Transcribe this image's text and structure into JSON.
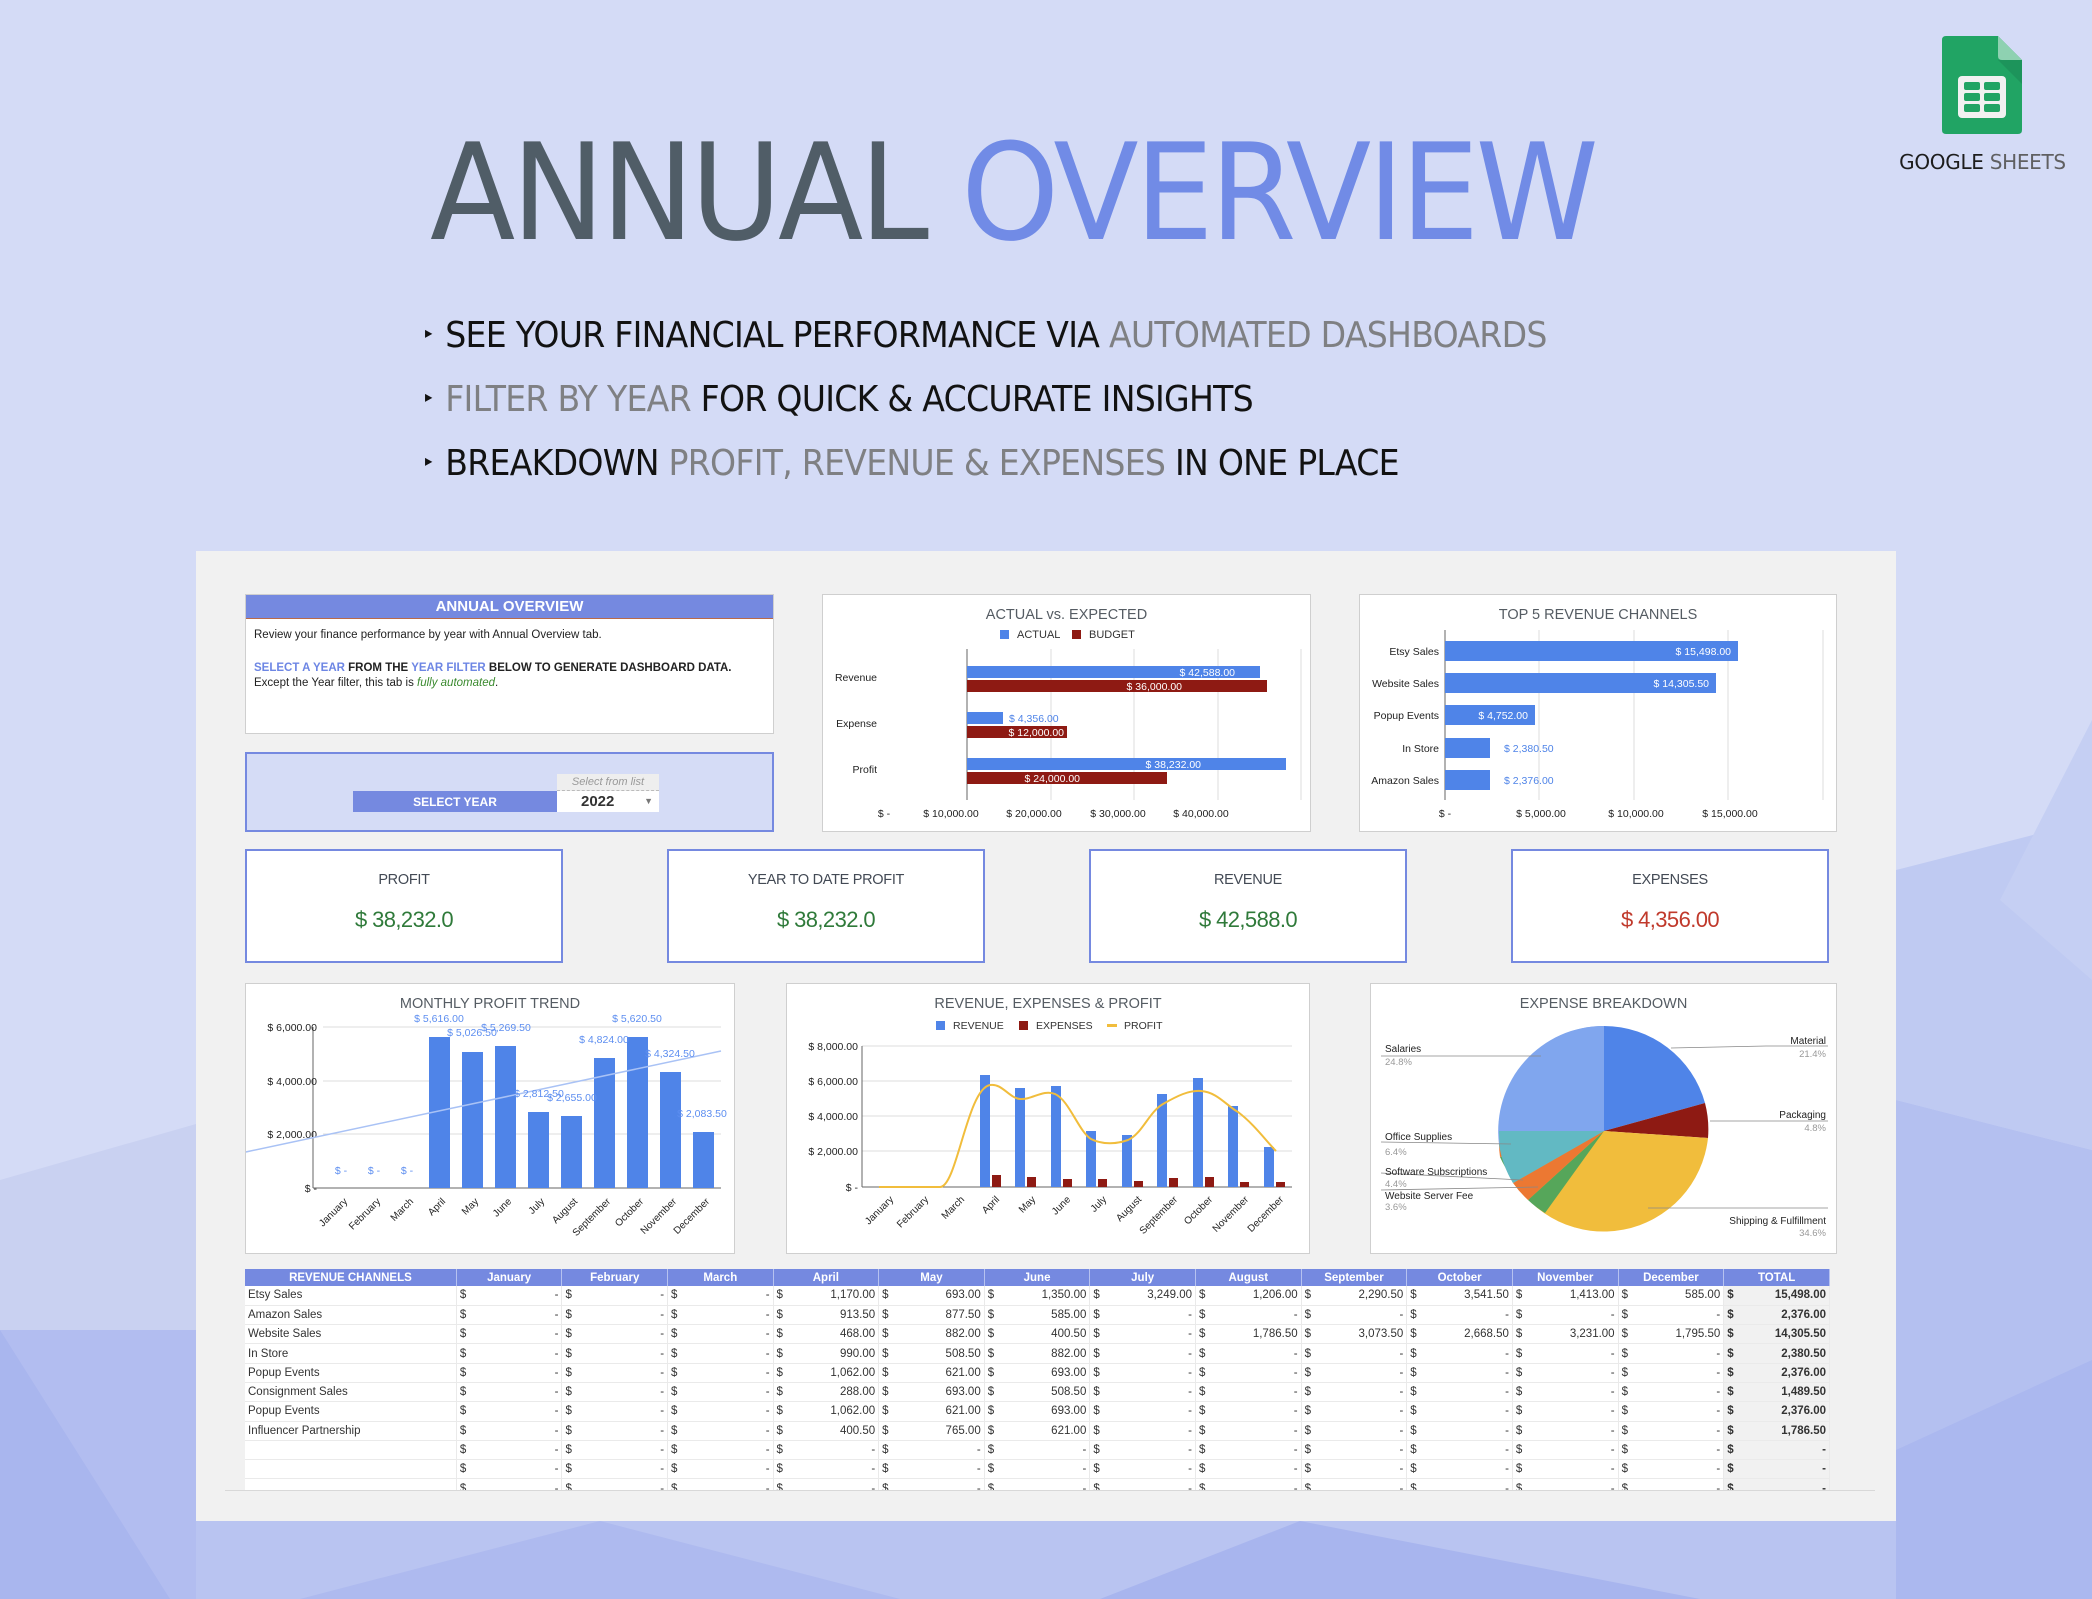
{
  "hero": {
    "title_dark": "ANNUAL",
    "title_accent": "OVERVIEW",
    "bullets": [
      {
        "parts": [
          {
            "text": "SEE YOUR FINANCIAL PERFORMANCE VIA ",
            "style": "dark"
          },
          {
            "text": "AUTOMATED DASHBOARDS",
            "style": "gray"
          }
        ]
      },
      {
        "parts": [
          {
            "text": "FILTER BY YEAR",
            "style": "gray"
          },
          {
            "text": " FOR QUICK & ACCURATE INSIGHTS",
            "style": "dark"
          }
        ]
      },
      {
        "parts": [
          {
            "text": "BREAKDOWN ",
            "style": "dark"
          },
          {
            "text": "PROFIT, REVENUE & EXPENSES",
            "style": "gray"
          },
          {
            "text": " IN ONE PLACE",
            "style": "dark"
          }
        ]
      }
    ],
    "bullet_marker": "▸"
  },
  "brand": {
    "icon": "google-sheets-icon",
    "label_bold": "GOOGLE",
    "label_light": "SHEETS"
  },
  "colors": {
    "accent": "#7589e0",
    "title_dark": "#505d67",
    "title_accent": "#718be6",
    "chart_blue": "#4f84e8",
    "chart_red": "#8e1a13",
    "chart_yellow": "#f1bd3c",
    "positive": "#2f7a3a",
    "negative": "#c0392b"
  },
  "info": {
    "header": "ANNUAL OVERVIEW",
    "line1": "Review your finance performance by year with Annual Overview tab.",
    "line2_a": "SELECT A YEAR",
    "line2_b": " FROM THE ",
    "line2_c": "YEAR FILTER",
    "line2_d": " BELOW TO GENERATE DASHBOARD DATA.",
    "line3_a": "Except the Year filter, this tab is ",
    "line3_b": "fully automated",
    "line3_c": "."
  },
  "year_filter": {
    "label": "SELECT YEAR",
    "hint": "Select from list",
    "value": "2022"
  },
  "kpis": [
    {
      "label": "PROFIT",
      "value": "$ 38,232.0",
      "tone": "green"
    },
    {
      "label": "YEAR TO DATE PROFIT",
      "value": "$ 38,232.0",
      "tone": "green"
    },
    {
      "label": "REVENUE",
      "value": "$ 42,588.0",
      "tone": "green"
    },
    {
      "label": "EXPENSES",
      "value": "$ 4,356.00",
      "tone": "red"
    }
  ],
  "chart_data": [
    {
      "type": "bar",
      "orientation": "horizontal",
      "title": "ACTUAL vs. EXPECTED",
      "categories": [
        "Revenue",
        "Expense",
        "Profit"
      ],
      "series": [
        {
          "name": "ACTUAL",
          "values": [
            42588,
            4356,
            38232
          ],
          "labels": [
            "$ 42,588.00",
            "$ 4,356.00",
            "$ 38,232.00"
          ]
        },
        {
          "name": "BUDGET",
          "values": [
            36000,
            12000,
            24000
          ],
          "labels": [
            "$ 36,000.00",
            "$ 12,000.00",
            "$ 24,000.00"
          ]
        }
      ],
      "xticks": [
        "$ -",
        "$ 10,000.00",
        "$ 20,000.00",
        "$ 30,000.00",
        "$ 40,000.00"
      ],
      "xlim": [
        0,
        50000
      ],
      "legend_position": "top",
      "grid": true
    },
    {
      "type": "bar",
      "orientation": "horizontal",
      "title": "TOP 5 REVENUE CHANNELS",
      "categories": [
        "Etsy Sales",
        "Website Sales",
        "Popup Events",
        "In Store",
        "Amazon Sales"
      ],
      "values": [
        15498,
        14305.5,
        4752,
        2380.5,
        2376
      ],
      "labels": [
        "$ 15,498.00",
        "$ 14,305.50",
        "$ 4,752.00",
        "$ 2,380.50",
        "$ 2,376.00"
      ],
      "xticks": [
        "$ -",
        "$ 5,000.00",
        "$ 10,000.00",
        "$ 15,000.00"
      ],
      "xlim": [
        0,
        20000
      ],
      "grid": true
    },
    {
      "type": "bar",
      "title": "MONTHLY PROFIT TREND",
      "categories": [
        "January",
        "February",
        "March",
        "April",
        "May",
        "June",
        "July",
        "August",
        "September",
        "October",
        "November",
        "December"
      ],
      "values": [
        0,
        0,
        0,
        5616,
        5026.5,
        5269.5,
        2812.5,
        2655,
        4824,
        5620.5,
        4324.5,
        2083.5
      ],
      "labels": [
        "$ -",
        "$ -",
        "$ -",
        "$ 5,616.00",
        "$ 5,026.50",
        "$ 5,269.50",
        "$ 2,812.50",
        "$ 2,655.00",
        "$ 4,824.00",
        "$ 5,620.50",
        "$ 4,324.50",
        "$ 2,083.50"
      ],
      "trendline": {
        "start": 1300,
        "end": 5050
      },
      "yticks": [
        "$ -",
        "$ 2,000.00",
        "$ 4,000.00",
        "$ 6,000.00"
      ],
      "ylim": [
        0,
        6000
      ],
      "grid": true
    },
    {
      "type": "bar",
      "title": "REVENUE, EXPENSES & PROFIT",
      "categories": [
        "January",
        "February",
        "March",
        "April",
        "May",
        "June",
        "July",
        "August",
        "September",
        "October",
        "November",
        "December"
      ],
      "series": [
        {
          "name": "REVENUE",
          "type": "bar",
          "values": [
            0,
            0,
            0,
            6350,
            5650,
            5750,
            3200,
            2950,
            5350,
            6200,
            4600,
            2300
          ]
        },
        {
          "name": "EXPENSES",
          "type": "bar",
          "values": [
            0,
            0,
            0,
            734,
            624,
            481,
            388,
            295,
            526,
            580,
            276,
            217
          ]
        },
        {
          "name": "PROFIT",
          "type": "line",
          "values": [
            0,
            0,
            0,
            5616,
            5026.5,
            5269.5,
            2812.5,
            2655,
            4824,
            5620.5,
            4324.5,
            2083.5
          ]
        }
      ],
      "yticks": [
        "$ -",
        "$ 2,000.00",
        "$ 4,000.00",
        "$ 6,000.00",
        "$ 8,000.00"
      ],
      "ylim": [
        0,
        8000
      ],
      "legend_position": "top",
      "grid": true
    },
    {
      "type": "pie",
      "title": "EXPENSE BREAKDOWN",
      "slices": [
        {
          "label": "Material",
          "pct": "21.4%",
          "value": 21.4,
          "color": "#4f84e8"
        },
        {
          "label": "Packaging",
          "pct": "4.8%",
          "value": 4.8,
          "color": "#8e1a13"
        },
        {
          "label": "Shipping & Fulfillment",
          "pct": "34.6%",
          "value": 34.6,
          "color": "#f1bd3c"
        },
        {
          "label": "Website Server Fee",
          "pct": "3.6%",
          "value": 3.6,
          "color": "#56a65a"
        },
        {
          "label": "Software Subscriptions",
          "pct": "4.4%",
          "value": 4.4,
          "color": "#ec7832"
        },
        {
          "label": "Office Supplies",
          "pct": "6.4%",
          "value": 6.4,
          "color": "#62b9c3"
        },
        {
          "label": "Salaries",
          "pct": "24.8%",
          "value": 24.8,
          "color": "#80a6ee"
        }
      ]
    }
  ],
  "table": {
    "columns": [
      "REVENUE CHANNELS",
      "January",
      "February",
      "March",
      "April",
      "May",
      "June",
      "July",
      "August",
      "September",
      "October",
      "November",
      "December",
      "TOTAL"
    ],
    "currency": "$",
    "rows": [
      {
        "name": "Etsy Sales",
        "values": [
          "-",
          "-",
          "-",
          "1,170.00",
          "693.00",
          "1,350.00",
          "3,249.00",
          "1,206.00",
          "2,290.50",
          "3,541.50",
          "1,413.00",
          "585.00"
        ],
        "total": "15,498.00"
      },
      {
        "name": "Amazon Sales",
        "values": [
          "-",
          "-",
          "-",
          "913.50",
          "877.50",
          "585.00",
          "-",
          "-",
          "-",
          "-",
          "-",
          "-"
        ],
        "total": "2,376.00"
      },
      {
        "name": "Website Sales",
        "values": [
          "-",
          "-",
          "-",
          "468.00",
          "882.00",
          "400.50",
          "-",
          "1,786.50",
          "3,073.50",
          "2,668.50",
          "3,231.00",
          "1,795.50"
        ],
        "total": "14,305.50"
      },
      {
        "name": "In Store",
        "values": [
          "-",
          "-",
          "-",
          "990.00",
          "508.50",
          "882.00",
          "-",
          "-",
          "-",
          "-",
          "-",
          "-"
        ],
        "total": "2,380.50"
      },
      {
        "name": "Popup Events",
        "values": [
          "-",
          "-",
          "-",
          "1,062.00",
          "621.00",
          "693.00",
          "-",
          "-",
          "-",
          "-",
          "-",
          "-"
        ],
        "total": "2,376.00"
      },
      {
        "name": "Consignment Sales",
        "values": [
          "-",
          "-",
          "-",
          "288.00",
          "693.00",
          "508.50",
          "-",
          "-",
          "-",
          "-",
          "-",
          "-"
        ],
        "total": "1,489.50"
      },
      {
        "name": "Popup Events",
        "values": [
          "-",
          "-",
          "-",
          "1,062.00",
          "621.00",
          "693.00",
          "-",
          "-",
          "-",
          "-",
          "-",
          "-"
        ],
        "total": "2,376.00"
      },
      {
        "name": "Influencer Partnership",
        "values": [
          "-",
          "-",
          "-",
          "400.50",
          "765.00",
          "621.00",
          "-",
          "-",
          "-",
          "-",
          "-",
          "-"
        ],
        "total": "1,786.50"
      },
      {
        "name": "",
        "values": [
          "-",
          "-",
          "-",
          "-",
          "-",
          "-",
          "-",
          "-",
          "-",
          "-",
          "-",
          "-"
        ],
        "total": "-"
      },
      {
        "name": "",
        "values": [
          "-",
          "-",
          "-",
          "-",
          "-",
          "-",
          "-",
          "-",
          "-",
          "-",
          "-",
          "-"
        ],
        "total": "-"
      },
      {
        "name": "",
        "values": [
          "-",
          "-",
          "-",
          "-",
          "-",
          "-",
          "-",
          "-",
          "-",
          "-",
          "-",
          "-"
        ],
        "total": "-"
      }
    ]
  }
}
